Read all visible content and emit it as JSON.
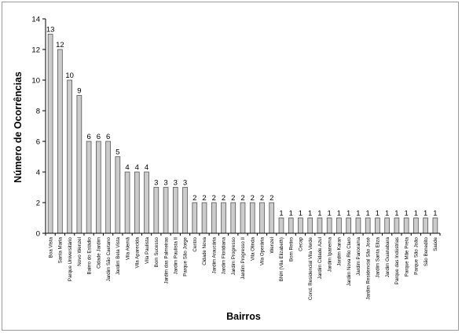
{
  "chart_data": {
    "type": "bar",
    "title": "",
    "xlabel": "Bairros",
    "ylabel": "Número de Ocorrências",
    "ylim": [
      0,
      14
    ],
    "yticks": [
      0,
      2,
      4,
      6,
      8,
      10,
      12,
      14
    ],
    "grid": false,
    "legend": "none",
    "bar_color": "#cccccc",
    "bar_edge_color": "#555555",
    "categories": [
      "Boa Vista",
      "Santa Maria",
      "Parque Universitário",
      "Novo Wenzel",
      "Bairro do Estádio",
      "Cidade Jardim",
      "Jardim São Caetano",
      "Jardim Bela Vista",
      "Vila Alemã",
      "Vila Aparecida",
      "Vila Paulista",
      "Bom Sucesso",
      "Jardim das Palmeiras",
      "Jardim Paulista II",
      "Parque São Jorge",
      "Centro",
      "Cidade Nova",
      "Jardim Araucária",
      "Jardim Floridiana",
      "Jardim Progresso",
      "Jardim Progresso II",
      "Vila Olinda",
      "Vila Operária",
      "Wenzel",
      "BNH (Vila Elizabeth)",
      "Bom Retiro",
      "Cecap",
      "Cond. Residencial Vila Verde",
      "Jardim Cidade Azul",
      "Jardim Ipanema",
      "Jardim Karan",
      "Jardim Nova Rio Claro",
      "Jardim Panorama",
      "Jardim Residencial São José",
      "Jardim Santa Eliza",
      "Jardim Guanabara",
      "Parque das Indústrias",
      "Parque Mãe Preta",
      "Parque São João",
      "São Benedito",
      "Saúde"
    ],
    "values": [
      13,
      12,
      10,
      9,
      6,
      6,
      6,
      5,
      4,
      4,
      4,
      3,
      3,
      3,
      3,
      2,
      2,
      2,
      2,
      2,
      2,
      2,
      2,
      2,
      1,
      1,
      1,
      1,
      1,
      1,
      1,
      1,
      1,
      1,
      1,
      1,
      1,
      1,
      1,
      1,
      1
    ]
  }
}
